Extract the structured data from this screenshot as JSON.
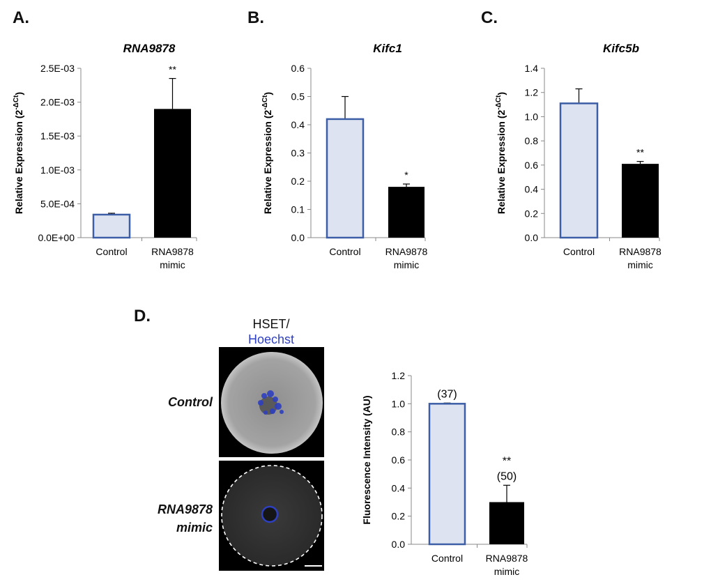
{
  "panels": {
    "a": {
      "letter": "A."
    },
    "b": {
      "letter": "B."
    },
    "c": {
      "letter": "C."
    },
    "d": {
      "letter": "D."
    }
  },
  "ylabel_main": "Relative Expression (2",
  "ylabel_sup": "-ΔCt",
  "ylabel_end": ")",
  "micrographs": {
    "header_line1": "HSET/",
    "header_line2": "Hoechst",
    "row1_label": "Control",
    "row2_label_line1": "RNA9878",
    "row2_label_line2": "mimic"
  },
  "colors": {
    "control_fill": "#dde3f1",
    "control_stroke": "#3b5ea6",
    "mimic_fill": "#000000",
    "hoechst": "#2e3fbf"
  },
  "chart_data": [
    {
      "type": "bar",
      "title": "RNA9878",
      "categories": [
        "Control",
        "RNA9878 mimic"
      ],
      "values": [
        0.00034,
        0.0019
      ],
      "errors": [
        2e-05,
        0.00045
      ],
      "annotations": [
        "",
        "**"
      ],
      "ylim": [
        0,
        0.0025
      ],
      "yticks": [
        0,
        0.0005,
        0.001,
        0.0015,
        0.002,
        0.0025
      ],
      "ytick_labels": [
        "0.0E+00",
        "5.0E-04",
        "1.0E-03",
        "1.5E-03",
        "2.0E-03",
        "2.5E-03"
      ]
    },
    {
      "type": "bar",
      "title": "Kifc1",
      "categories": [
        "Control",
        "RNA9878 mimic"
      ],
      "values": [
        0.42,
        0.18
      ],
      "errors": [
        0.08,
        0.01
      ],
      "annotations": [
        "",
        "*"
      ],
      "ylim": [
        0,
        0.6
      ],
      "yticks": [
        0,
        0.1,
        0.2,
        0.3,
        0.4,
        0.5,
        0.6
      ],
      "ytick_labels": [
        "0.0",
        "0.1",
        "0.2",
        "0.3",
        "0.4",
        "0.5",
        "0.6"
      ]
    },
    {
      "type": "bar",
      "title": "Kifc5b",
      "categories": [
        "Control",
        "RNA9878 mimic"
      ],
      "values": [
        1.11,
        0.61
      ],
      "errors": [
        0.12,
        0.02
      ],
      "annotations": [
        "",
        "**"
      ],
      "ylim": [
        0,
        1.4
      ],
      "yticks": [
        0,
        0.2,
        0.4,
        0.6,
        0.8,
        1.0,
        1.2,
        1.4
      ],
      "ytick_labels": [
        "0.0",
        "0.2",
        "0.4",
        "0.6",
        "0.8",
        "1.0",
        "1.2",
        "1.4"
      ]
    },
    {
      "type": "bar",
      "title": "",
      "ylabel": "Fluorescence Intensity (AU)",
      "categories": [
        "Control",
        "RNA9878 mimic"
      ],
      "values": [
        1.0,
        0.3
      ],
      "errors": [
        0.005,
        0.12
      ],
      "annotations": [
        "(37)",
        "**\n(50)"
      ],
      "ylim": [
        0,
        1.2
      ],
      "yticks": [
        0,
        0.2,
        0.4,
        0.6,
        0.8,
        1.0,
        1.2
      ],
      "ytick_labels": [
        "0.0",
        "0.2",
        "0.4",
        "0.6",
        "0.8",
        "1.0",
        "1.2"
      ]
    }
  ]
}
